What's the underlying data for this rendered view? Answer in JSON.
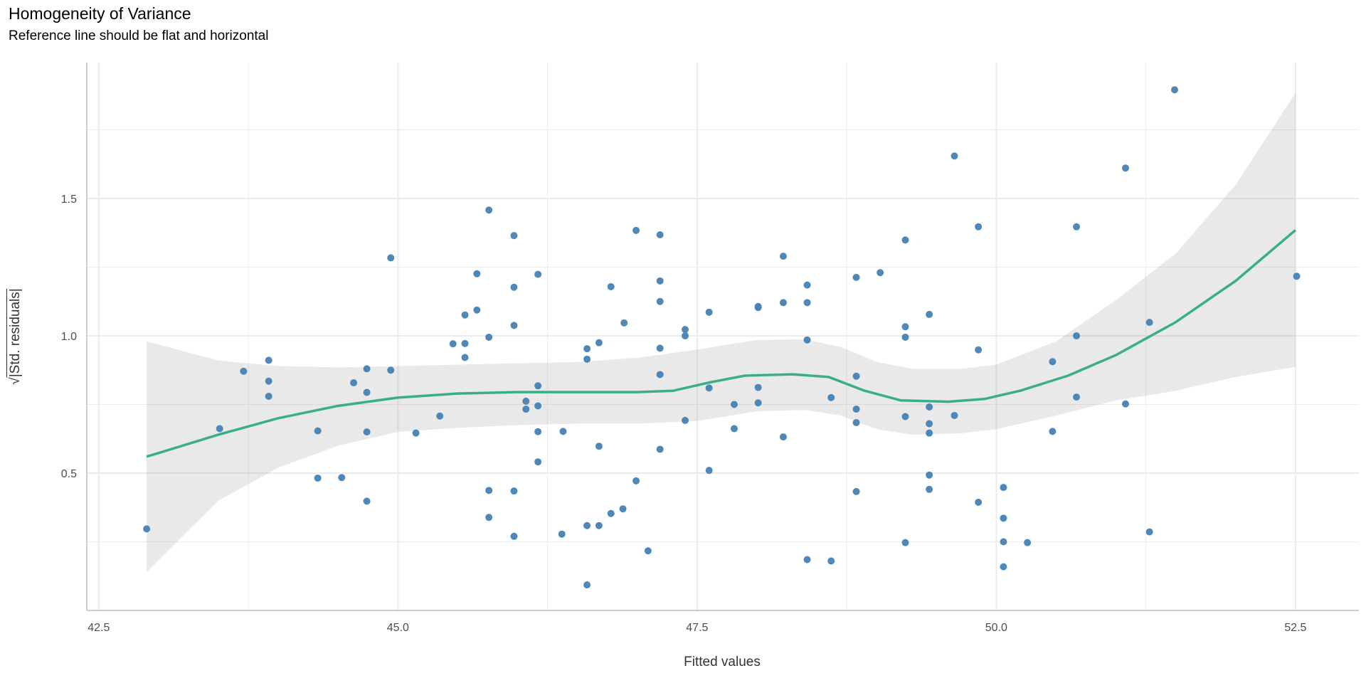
{
  "chart_data": {
    "type": "scatter",
    "title": "Homogeneity of Variance",
    "subtitle": "Reference line should be flat and horizontal",
    "xlabel": "Fitted values",
    "ylabel_sqrt": "√",
    "ylabel": "|Std. residuals|",
    "xlim": [
      42.4,
      53.03
    ],
    "ylim": [
      0,
      1.995
    ],
    "x_ticks": [
      42.5,
      45.0,
      47.5,
      50.0,
      52.5
    ],
    "x_tick_labels": [
      "42.5",
      "45.0",
      "47.5",
      "50.0",
      "52.5"
    ],
    "x_minor": [
      43.75,
      46.25,
      48.75,
      51.25
    ],
    "y_ticks": [
      0.5,
      1.0,
      1.5
    ],
    "y_tick_labels": [
      "0.5",
      "1.0",
      "1.5"
    ],
    "y_minor": [
      0.25,
      0.75,
      1.25,
      1.75
    ],
    "grid": true,
    "colors": {
      "points": "#4682b4",
      "line": "#3aaf85",
      "band": "#e6e6e6",
      "grid": "#ebebeb",
      "axis": "#cccccc"
    },
    "points": [
      [
        42.9,
        0.297
      ],
      [
        43.51,
        0.662
      ],
      [
        43.71,
        0.871
      ],
      [
        43.92,
        0.911
      ],
      [
        43.92,
        0.835
      ],
      [
        43.92,
        0.78
      ],
      [
        44.33,
        0.654
      ],
      [
        44.33,
        0.482
      ],
      [
        44.53,
        0.484
      ],
      [
        44.63,
        0.829
      ],
      [
        44.74,
        0.88
      ],
      [
        44.74,
        0.794
      ],
      [
        44.74,
        0.65
      ],
      [
        44.74,
        0.398
      ],
      [
        44.94,
        1.284
      ],
      [
        44.94,
        0.875
      ],
      [
        45.15,
        0.646
      ],
      [
        45.35,
        0.708
      ],
      [
        45.46,
        0.971
      ],
      [
        45.56,
        1.076
      ],
      [
        45.56,
        0.972
      ],
      [
        45.56,
        0.921
      ],
      [
        45.66,
        1.226
      ],
      [
        45.66,
        1.094
      ],
      [
        45.76,
        1.458
      ],
      [
        45.76,
        0.995
      ],
      [
        45.76,
        0.437
      ],
      [
        45.76,
        0.339
      ],
      [
        45.97,
        1.365
      ],
      [
        45.97,
        1.177
      ],
      [
        45.97,
        1.038
      ],
      [
        45.97,
        0.435
      ],
      [
        45.97,
        0.27
      ],
      [
        46.07,
        0.762
      ],
      [
        46.07,
        0.733
      ],
      [
        46.17,
        1.224
      ],
      [
        46.17,
        0.818
      ],
      [
        46.17,
        0.745
      ],
      [
        46.17,
        0.651
      ],
      [
        46.17,
        0.541
      ],
      [
        46.37,
        0.278
      ],
      [
        46.38,
        0.652
      ],
      [
        46.58,
        0.953
      ],
      [
        46.58,
        0.915
      ],
      [
        46.58,
        0.309
      ],
      [
        46.58,
        0.093
      ],
      [
        46.68,
        0.975
      ],
      [
        46.68,
        0.598
      ],
      [
        46.68,
        0.309
      ],
      [
        46.78,
        1.179
      ],
      [
        46.78,
        0.353
      ],
      [
        46.89,
        1.047
      ],
      [
        46.88,
        0.37
      ],
      [
        46.99,
        1.384
      ],
      [
        46.99,
        0.472
      ],
      [
        47.09,
        0.217
      ],
      [
        47.19,
        1.368
      ],
      [
        47.19,
        1.2
      ],
      [
        47.19,
        1.125
      ],
      [
        47.19,
        0.955
      ],
      [
        47.19,
        0.859
      ],
      [
        47.19,
        0.587
      ],
      [
        47.4,
        1.023
      ],
      [
        47.4,
        1.0
      ],
      [
        47.4,
        0.692
      ],
      [
        47.6,
        1.086
      ],
      [
        47.6,
        0.81
      ],
      [
        47.6,
        0.51
      ],
      [
        47.81,
        0.75
      ],
      [
        47.81,
        0.662
      ],
      [
        48.01,
        1.107
      ],
      [
        48.01,
        1.103
      ],
      [
        48.01,
        0.812
      ],
      [
        48.01,
        0.756
      ],
      [
        48.22,
        1.29
      ],
      [
        48.22,
        1.121
      ],
      [
        48.22,
        0.632
      ],
      [
        48.42,
        1.185
      ],
      [
        48.42,
        1.121
      ],
      [
        48.42,
        0.985
      ],
      [
        48.42,
        0.185
      ],
      [
        48.62,
        0.775
      ],
      [
        48.62,
        0.18
      ],
      [
        48.83,
        1.213
      ],
      [
        48.83,
        0.853
      ],
      [
        48.83,
        0.733
      ],
      [
        48.83,
        0.684
      ],
      [
        48.83,
        0.433
      ],
      [
        49.03,
        1.23
      ],
      [
        49.24,
        1.349
      ],
      [
        49.24,
        1.033
      ],
      [
        49.24,
        0.995
      ],
      [
        49.24,
        0.706
      ],
      [
        49.24,
        0.247
      ],
      [
        49.44,
        1.078
      ],
      [
        49.44,
        0.741
      ],
      [
        49.44,
        0.68
      ],
      [
        49.44,
        0.646
      ],
      [
        49.44,
        0.493
      ],
      [
        49.44,
        0.441
      ],
      [
        49.65,
        1.655
      ],
      [
        49.65,
        0.71
      ],
      [
        49.85,
        1.397
      ],
      [
        49.85,
        0.949
      ],
      [
        49.85,
        0.394
      ],
      [
        50.06,
        0.448
      ],
      [
        50.06,
        0.336
      ],
      [
        50.06,
        0.25
      ],
      [
        50.06,
        0.159
      ],
      [
        50.26,
        0.247
      ],
      [
        50.47,
        0.906
      ],
      [
        50.47,
        0.652
      ],
      [
        50.67,
        1.397
      ],
      [
        50.67,
        1.0
      ],
      [
        50.67,
        0.777
      ],
      [
        51.08,
        1.611
      ],
      [
        51.08,
        0.752
      ],
      [
        51.28,
        1.049
      ],
      [
        51.28,
        0.286
      ],
      [
        51.49,
        1.896
      ],
      [
        52.51,
        1.217
      ]
    ],
    "smooth": {
      "x": [
        42.9,
        43.5,
        44.0,
        44.5,
        45.0,
        45.5,
        46.0,
        46.5,
        47.0,
        47.3,
        47.6,
        47.9,
        48.3,
        48.6,
        48.9,
        49.2,
        49.6,
        49.9,
        50.2,
        50.6,
        51.0,
        51.5,
        52.0,
        52.5
      ],
      "y": [
        0.56,
        0.64,
        0.7,
        0.745,
        0.775,
        0.79,
        0.795,
        0.795,
        0.795,
        0.8,
        0.83,
        0.855,
        0.86,
        0.85,
        0.8,
        0.765,
        0.76,
        0.77,
        0.8,
        0.855,
        0.93,
        1.05,
        1.2,
        1.385
      ]
    },
    "band": {
      "x": [
        42.9,
        43.5,
        44.0,
        44.5,
        45.0,
        45.5,
        46.0,
        46.5,
        47.0,
        47.5,
        48.0,
        48.4,
        48.7,
        49.0,
        49.3,
        49.7,
        50.0,
        50.5,
        51.0,
        51.5,
        52.0,
        52.5
      ],
      "lower": [
        0.14,
        0.4,
        0.52,
        0.6,
        0.65,
        0.665,
        0.675,
        0.68,
        0.68,
        0.69,
        0.725,
        0.73,
        0.71,
        0.66,
        0.64,
        0.645,
        0.66,
        0.71,
        0.765,
        0.8,
        0.85,
        0.887
      ],
      "upper": [
        0.98,
        0.91,
        0.89,
        0.885,
        0.89,
        0.895,
        0.9,
        0.905,
        0.92,
        0.95,
        0.985,
        0.987,
        0.96,
        0.905,
        0.88,
        0.88,
        0.895,
        0.98,
        1.13,
        1.3,
        1.55,
        1.884
      ]
    }
  }
}
